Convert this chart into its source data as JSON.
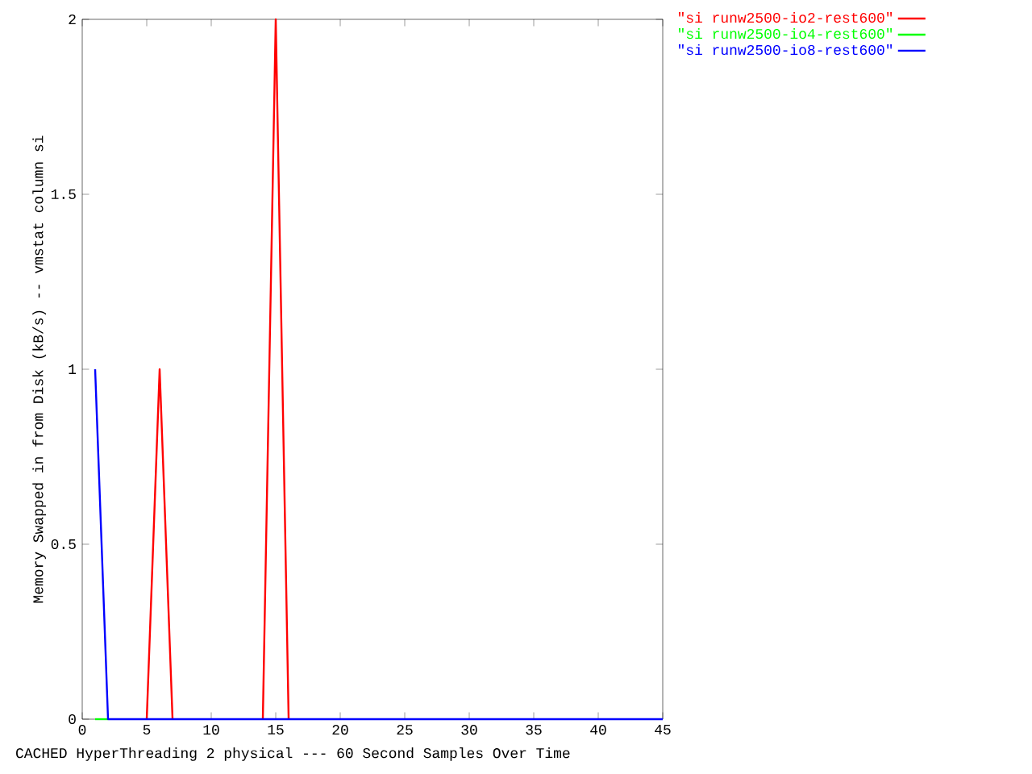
{
  "chart_data": {
    "type": "line",
    "xlabel": "CACHED HyperThreading 2 physical --- 60 Second Samples Over Time",
    "ylabel": "Memory Swapped in from Disk (kB/s) -- vmstat column si",
    "x": [
      1,
      2,
      3,
      4,
      5,
      6,
      7,
      8,
      9,
      10,
      11,
      12,
      13,
      14,
      15,
      16,
      17,
      18,
      19,
      20,
      21,
      22,
      23,
      24,
      25,
      26,
      27,
      28,
      29,
      30,
      31,
      32,
      33,
      34,
      35,
      36,
      37,
      38,
      39,
      40,
      41,
      42,
      43,
      44,
      45
    ],
    "series": [
      {
        "name": "\"si runw2500-io2-rest600\"",
        "color": "#ff0000",
        "values": [
          null,
          null,
          null,
          null,
          0,
          1,
          0,
          null,
          null,
          null,
          null,
          null,
          null,
          0,
          2,
          0,
          null,
          null,
          null,
          null,
          null,
          null,
          null,
          null,
          null,
          null,
          null,
          null,
          null,
          null,
          null,
          null,
          null,
          null,
          null,
          null,
          null,
          null,
          null,
          null,
          null,
          null,
          null,
          null,
          null
        ]
      },
      {
        "name": "\"si runw2500-io4-rest600\"",
        "color": "#00ff00",
        "values": [
          0,
          0,
          null,
          null,
          null,
          null,
          null,
          null,
          null,
          null,
          null,
          null,
          null,
          null,
          null,
          null,
          null,
          null,
          null,
          null,
          null,
          null,
          null,
          null,
          null,
          null,
          null,
          null,
          null,
          null,
          null,
          null,
          null,
          null,
          null,
          null,
          null,
          null,
          null,
          null,
          null,
          null,
          null,
          null,
          null
        ]
      },
      {
        "name": "\"si runw2500-io8-rest600\"",
        "color": "#0000ff",
        "values": [
          1,
          0,
          0,
          0,
          0,
          0,
          0,
          0,
          0,
          0,
          0,
          0,
          0,
          0,
          0,
          0,
          0,
          0,
          0,
          0,
          0,
          0,
          0,
          0,
          0,
          0,
          0,
          0,
          0,
          0,
          0,
          0,
          0,
          0,
          0,
          0,
          0,
          0,
          0,
          0,
          0,
          0,
          0,
          0,
          0
        ]
      }
    ],
    "xlim": [
      0,
      45
    ],
    "xticks": [
      0,
      5,
      10,
      15,
      20,
      25,
      30,
      35,
      40,
      45
    ],
    "ylim": [
      0,
      2
    ],
    "yticks": [
      0,
      0.5,
      1,
      1.5,
      2
    ],
    "legend": "top right",
    "marker": "none",
    "line_style": "solid",
    "grid": false
  }
}
